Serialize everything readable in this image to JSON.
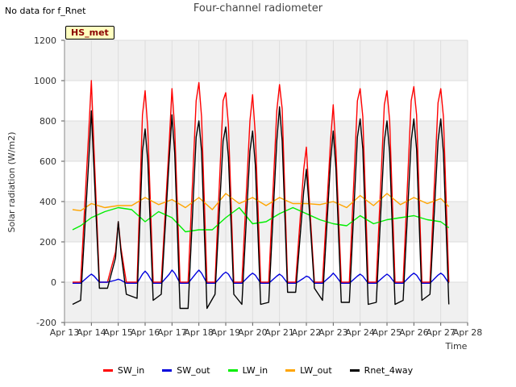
{
  "note": "No data for f_Rnet",
  "badge": "HS_met",
  "chart_data": {
    "type": "line",
    "title": "Four-channel radiometer",
    "xlabel": "Time",
    "ylabel": "Solar radiation (W/m2)",
    "ylim": [
      -200,
      1200
    ],
    "yticks": [
      -200,
      0,
      200,
      400,
      600,
      800,
      1000,
      1200
    ],
    "xlim": [
      13,
      28
    ],
    "xticks": [
      13,
      14,
      15,
      16,
      17,
      18,
      19,
      20,
      21,
      22,
      23,
      24,
      25,
      26,
      27,
      28
    ],
    "xticklabels": [
      "Apr 13",
      "Apr 14",
      "Apr 15",
      "Apr 16",
      "Apr 17",
      "Apr 18",
      "Apr 19",
      "Apr 20",
      "Apr 21",
      "Apr 22",
      "Apr 23",
      "Apr 24",
      "Apr 25",
      "Apr 26",
      "Apr 27",
      "Apr 28"
    ],
    "grid": true,
    "legend_position": "bottom",
    "series": [
      {
        "name": "SW_in",
        "color": "#ff0000",
        "x": [
          13.3,
          13.6,
          13.9,
          14.0,
          14.1,
          14.3,
          14.6,
          14.9,
          15.0,
          15.1,
          15.3,
          15.7,
          15.9,
          16.0,
          16.1,
          16.3,
          16.6,
          16.9,
          17.0,
          17.1,
          17.3,
          17.6,
          17.9,
          18.0,
          18.1,
          18.3,
          18.6,
          18.9,
          19.0,
          19.1,
          19.3,
          19.6,
          19.9,
          20.0,
          20.1,
          20.3,
          20.6,
          20.9,
          21.0,
          21.1,
          21.3,
          21.6,
          21.9,
          22.0,
          22.1,
          22.3,
          22.6,
          22.9,
          23.0,
          23.1,
          23.3,
          23.6,
          23.9,
          24.0,
          24.1,
          24.3,
          24.6,
          24.9,
          25.0,
          25.1,
          25.3,
          25.6,
          25.9,
          26.0,
          26.1,
          26.3,
          26.6,
          26.9,
          27.0,
          27.1,
          27.3
        ],
        "y": [
          0,
          0,
          740,
          1000,
          650,
          0,
          0,
          150,
          300,
          170,
          0,
          0,
          830,
          950,
          760,
          0,
          0,
          700,
          960,
          760,
          0,
          0,
          900,
          990,
          820,
          0,
          0,
          900,
          940,
          780,
          0,
          0,
          800,
          930,
          730,
          0,
          0,
          850,
          980,
          860,
          0,
          0,
          560,
          670,
          430,
          0,
          0,
          700,
          880,
          650,
          0,
          0,
          900,
          960,
          820,
          0,
          0,
          880,
          950,
          800,
          0,
          0,
          900,
          970,
          830,
          0,
          0,
          890,
          960,
          820,
          0
        ]
      },
      {
        "name": "SW_out",
        "color": "#0000dd",
        "x": [
          13.3,
          13.6,
          13.9,
          14.0,
          14.1,
          14.3,
          14.6,
          14.9,
          15.0,
          15.1,
          15.3,
          15.7,
          15.9,
          16.0,
          16.1,
          16.3,
          16.6,
          16.9,
          17.0,
          17.1,
          17.3,
          17.6,
          17.9,
          18.0,
          18.1,
          18.3,
          18.6,
          18.9,
          19.0,
          19.1,
          19.3,
          19.6,
          19.9,
          20.0,
          20.1,
          20.3,
          20.6,
          20.9,
          21.0,
          21.1,
          21.3,
          21.6,
          21.9,
          22.0,
          22.1,
          22.3,
          22.6,
          22.9,
          23.0,
          23.1,
          23.3,
          23.6,
          23.9,
          24.0,
          24.1,
          24.3,
          24.6,
          24.9,
          25.0,
          25.1,
          25.3,
          25.6,
          25.9,
          26.0,
          26.1,
          26.3,
          26.6,
          26.9,
          27.0,
          27.1,
          27.3
        ],
        "y": [
          -5,
          -5,
          30,
          40,
          30,
          0,
          0,
          10,
          15,
          10,
          -5,
          -5,
          40,
          55,
          40,
          -5,
          -5,
          40,
          60,
          45,
          -5,
          -5,
          45,
          60,
          45,
          -5,
          -5,
          40,
          50,
          40,
          -5,
          -5,
          35,
          45,
          35,
          -5,
          -5,
          30,
          40,
          30,
          -5,
          -5,
          20,
          30,
          25,
          -5,
          -5,
          30,
          45,
          30,
          -5,
          -5,
          30,
          40,
          30,
          -5,
          -5,
          30,
          40,
          30,
          -5,
          -5,
          35,
          45,
          35,
          -5,
          -5,
          35,
          45,
          35,
          -5
        ]
      },
      {
        "name": "LW_in",
        "color": "#00ee00",
        "x": [
          13.3,
          13.6,
          14.0,
          14.5,
          15.0,
          15.5,
          16.0,
          16.5,
          17.0,
          17.5,
          18.0,
          18.5,
          19.0,
          19.5,
          20.0,
          20.5,
          21.0,
          21.5,
          22.0,
          22.5,
          23.0,
          23.5,
          24.0,
          24.5,
          25.0,
          25.5,
          26.0,
          26.5,
          27.0,
          27.3
        ],
        "y": [
          260,
          280,
          320,
          350,
          370,
          360,
          300,
          350,
          320,
          250,
          260,
          260,
          320,
          370,
          290,
          300,
          340,
          370,
          340,
          310,
          290,
          280,
          330,
          290,
          310,
          320,
          330,
          310,
          300,
          270
        ]
      },
      {
        "name": "LW_out",
        "color": "#ffa500",
        "x": [
          13.3,
          13.6,
          14.0,
          14.5,
          15.0,
          15.5,
          16.0,
          16.5,
          17.0,
          17.5,
          18.0,
          18.5,
          19.0,
          19.5,
          20.0,
          20.5,
          21.0,
          21.5,
          22.0,
          22.5,
          23.0,
          23.5,
          24.0,
          24.5,
          25.0,
          25.5,
          26.0,
          26.5,
          27.0,
          27.3
        ],
        "y": [
          360,
          355,
          390,
          370,
          380,
          380,
          420,
          385,
          410,
          370,
          420,
          360,
          440,
          390,
          420,
          380,
          420,
          390,
          390,
          385,
          400,
          370,
          430,
          380,
          440,
          385,
          420,
          390,
          415,
          375
        ]
      },
      {
        "name": "Rnet_4way",
        "color": "#000000",
        "x": [
          13.3,
          13.6,
          13.9,
          14.0,
          14.1,
          14.3,
          14.6,
          14.9,
          15.0,
          15.1,
          15.3,
          15.7,
          15.9,
          16.0,
          16.1,
          16.3,
          16.6,
          16.9,
          17.0,
          17.1,
          17.3,
          17.6,
          17.9,
          18.0,
          18.1,
          18.3,
          18.6,
          18.9,
          19.0,
          19.1,
          19.3,
          19.6,
          19.9,
          20.0,
          20.1,
          20.3,
          20.6,
          20.9,
          21.0,
          21.1,
          21.3,
          21.6,
          21.9,
          22.0,
          22.1,
          22.3,
          22.6,
          22.9,
          23.0,
          23.1,
          23.3,
          23.6,
          23.9,
          24.0,
          24.1,
          24.3,
          24.6,
          24.9,
          25.0,
          25.1,
          25.3,
          25.6,
          25.9,
          26.0,
          26.1,
          26.3,
          26.6,
          26.9,
          27.0,
          27.1,
          27.3
        ],
        "y": [
          -110,
          -90,
          600,
          850,
          550,
          -30,
          -30,
          120,
          300,
          150,
          -60,
          -80,
          650,
          760,
          600,
          -90,
          -60,
          620,
          830,
          640,
          -130,
          -130,
          720,
          800,
          650,
          -130,
          -60,
          700,
          770,
          620,
          -60,
          -110,
          650,
          750,
          580,
          -110,
          -100,
          700,
          870,
          700,
          -50,
          -50,
          450,
          560,
          380,
          -30,
          -90,
          600,
          750,
          560,
          -100,
          -100,
          720,
          810,
          660,
          -110,
          -100,
          700,
          800,
          640,
          -110,
          -90,
          700,
          810,
          660,
          -90,
          -60,
          700,
          810,
          640,
          -110
        ]
      }
    ]
  }
}
